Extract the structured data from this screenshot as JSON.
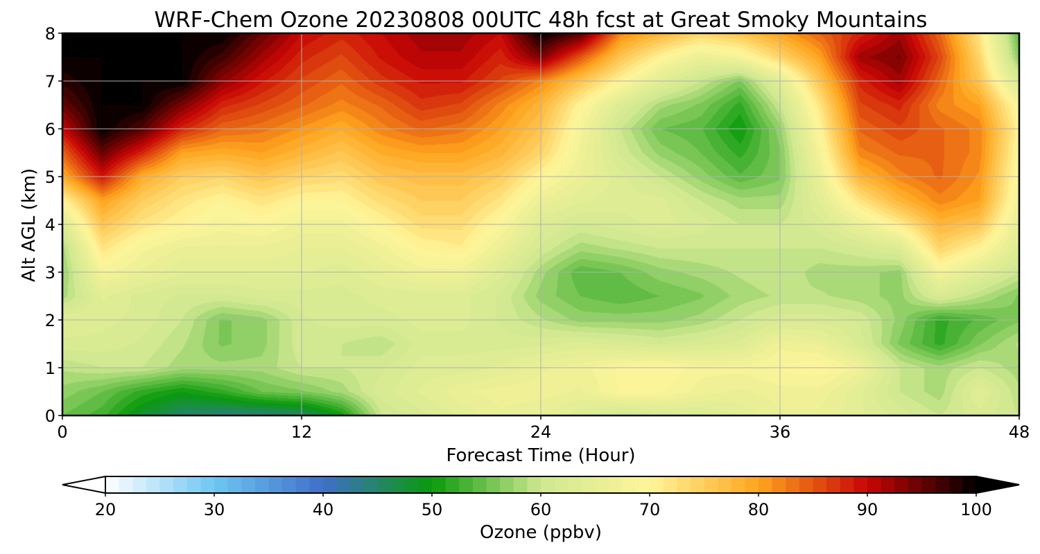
{
  "chart_data": {
    "type": "heatmap",
    "title": "WRF-Chem Ozone  20230808 00UTC 48h fcst at Great Smoky Mountains",
    "xlabel": "Forecast Time (Hour)",
    "ylabel": "Alt AGL (km)",
    "xlim": [
      0,
      48
    ],
    "ylim": [
      0,
      8
    ],
    "x_ticks": [
      0,
      12,
      24,
      36,
      48
    ],
    "y_ticks": [
      0,
      1,
      2,
      3,
      4,
      5,
      6,
      7,
      8
    ],
    "grid": true,
    "colorbar": {
      "label": "Ozone  (ppbv)",
      "range": [
        20,
        100
      ],
      "ticks": [
        20,
        30,
        40,
        50,
        60,
        70,
        80,
        90,
        100
      ],
      "extend": "both",
      "colors": [
        "#ffffff",
        "#6ec6f2",
        "#3f6fc8",
        "#0a9a0a",
        "#cfe890",
        "#fff59a",
        "#ffa51e",
        "#c80505",
        "#000000"
      ]
    },
    "x": [
      0,
      2,
      4,
      6,
      8,
      10,
      12,
      14,
      16,
      18,
      20,
      22,
      24,
      26,
      28,
      30,
      32,
      34,
      36,
      38,
      40,
      42,
      44,
      46,
      48
    ],
    "y": [
      0,
      0.5,
      1,
      1.5,
      2,
      2.5,
      3,
      3.5,
      4,
      4.5,
      5,
      5.5,
      6,
      6.5,
      7,
      7.5,
      8
    ],
    "z": [
      [
        55,
        53,
        48,
        45,
        44,
        44,
        45,
        50,
        60,
        62,
        64,
        66,
        65,
        63,
        61,
        62,
        62,
        64,
        66,
        66,
        64,
        62,
        60,
        62,
        60
      ],
      [
        57,
        55,
        52,
        50,
        52,
        55,
        56,
        58,
        62,
        64,
        66,
        67,
        67,
        66,
        69,
        69,
        67,
        66,
        67,
        67,
        64,
        60,
        58,
        64,
        59
      ],
      [
        59,
        60,
        60,
        58,
        58,
        58,
        60,
        60,
        61,
        63,
        63,
        64,
        66,
        67,
        69,
        70,
        68,
        68,
        69,
        70,
        67,
        60,
        58,
        60,
        58
      ],
      [
        62,
        62,
        61,
        59,
        56,
        57,
        61,
        60,
        59,
        62,
        62,
        62,
        62,
        63,
        62,
        61,
        62,
        63,
        67,
        66,
        62,
        56,
        52,
        56,
        59
      ],
      [
        64,
        63,
        62,
        60,
        56,
        57,
        61,
        62,
        62,
        63,
        63,
        61,
        59,
        57,
        57,
        57,
        58,
        60,
        62,
        62,
        61,
        57,
        52,
        54,
        56
      ],
      [
        58,
        64,
        62,
        61,
        61,
        62,
        62,
        62,
        63,
        63,
        63,
        61,
        57,
        55,
        54,
        55,
        56,
        58,
        59,
        59,
        58,
        57,
        62,
        59,
        56
      ],
      [
        57,
        68,
        66,
        64,
        64,
        64,
        64,
        63,
        65,
        67,
        67,
        63,
        58,
        54,
        55,
        57,
        58,
        59,
        60,
        58,
        58,
        57,
        68,
        64,
        60
      ],
      [
        58,
        72,
        68,
        66,
        66,
        66,
        65,
        65,
        67,
        70,
        71,
        66,
        61,
        58,
        59,
        60,
        60,
        60,
        60,
        60,
        61,
        63,
        74,
        70,
        63
      ],
      [
        63,
        76,
        72,
        70,
        68,
        69,
        67,
        67,
        70,
        73,
        73,
        69,
        63,
        61,
        62,
        63,
        62,
        60,
        60,
        62,
        66,
        71,
        78,
        76,
        65
      ],
      [
        70,
        80,
        75,
        72,
        70,
        72,
        70,
        70,
        73,
        75,
        75,
        72,
        66,
        64,
        63,
        63,
        60,
        58,
        58,
        64,
        72,
        78,
        82,
        80,
        67
      ],
      [
        79,
        89,
        79,
        75,
        74,
        76,
        74,
        73,
        76,
        77,
        77,
        75,
        70,
        66,
        63,
        60,
        57,
        54,
        56,
        66,
        78,
        82,
        84,
        81,
        68
      ],
      [
        84,
        95,
        88,
        80,
        79,
        80,
        78,
        76,
        79,
        80,
        80,
        78,
        74,
        67,
        61,
        57,
        55,
        52,
        56,
        68,
        82,
        84,
        84,
        82,
        69
      ],
      [
        90,
        100,
        96,
        88,
        84,
        83,
        81,
        79,
        82,
        84,
        83,
        80,
        76,
        68,
        60,
        55,
        54,
        50,
        57,
        70,
        84,
        86,
        84,
        82,
        70
      ],
      [
        95,
        100,
        100,
        94,
        88,
        86,
        84,
        82,
        84,
        87,
        86,
        82,
        78,
        70,
        63,
        58,
        56,
        52,
        60,
        72,
        86,
        88,
        82,
        80,
        68
      ],
      [
        98,
        100,
        100,
        100,
        93,
        89,
        86,
        84,
        87,
        89,
        89,
        86,
        82,
        76,
        70,
        64,
        60,
        56,
        64,
        76,
        88,
        92,
        84,
        76,
        62
      ],
      [
        100,
        100,
        100,
        100,
        97,
        92,
        88,
        86,
        89,
        91,
        91,
        88,
        94,
        85,
        76,
        70,
        66,
        68,
        74,
        80,
        92,
        94,
        86,
        74,
        56
      ],
      [
        100,
        100,
        100,
        100,
        100,
        95,
        90,
        88,
        90,
        92,
        92,
        90,
        100,
        96,
        82,
        78,
        74,
        76,
        80,
        84,
        88,
        92,
        84,
        72,
        54
      ]
    ]
  }
}
